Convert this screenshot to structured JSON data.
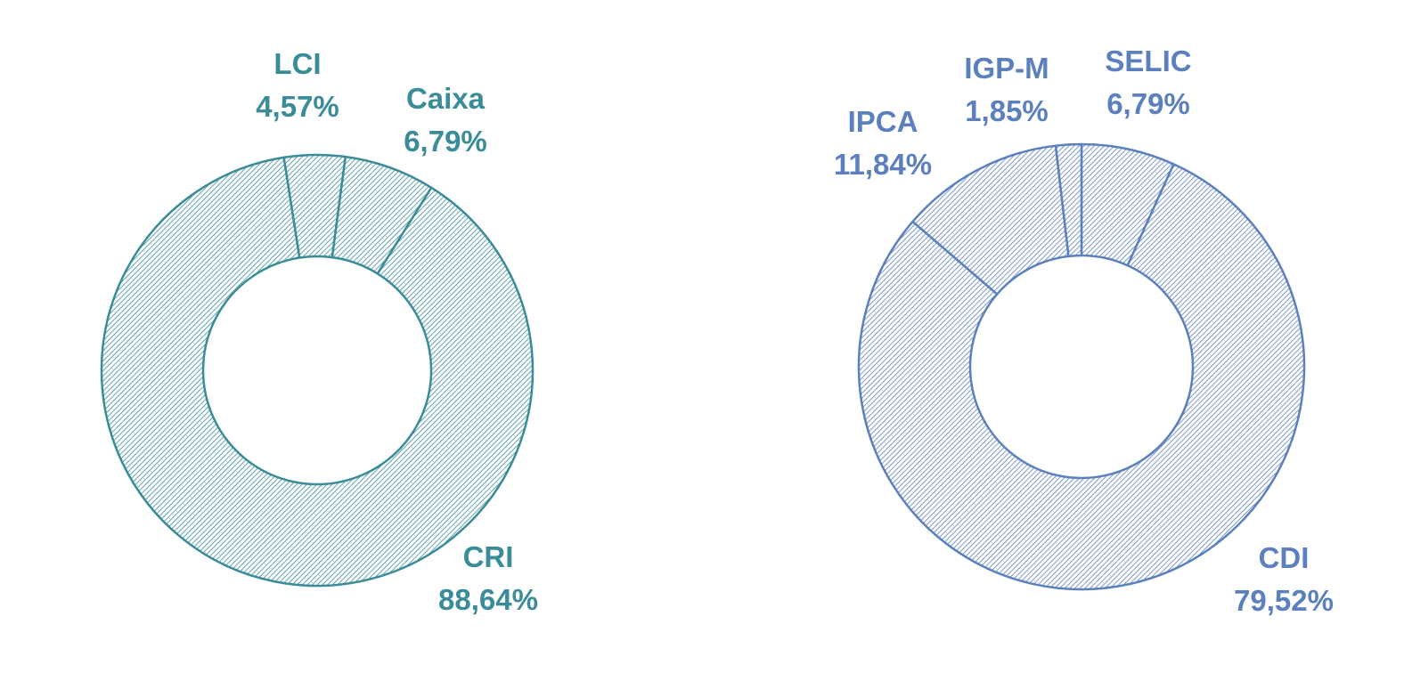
{
  "chart_data": [
    {
      "type": "pie",
      "variant": "donut",
      "pattern": "hatched",
      "color": "#3a8c98",
      "start_angle_deg": -8.9,
      "slices": [
        {
          "label": "LCI",
          "value": 4.57,
          "display": "4,57%"
        },
        {
          "label": "Caixa",
          "value": 6.79,
          "display": "6,79%"
        },
        {
          "label": "CRI",
          "value": 88.64,
          "display": "88,64%"
        }
      ]
    },
    {
      "type": "pie",
      "variant": "donut",
      "pattern": "hatched",
      "color": "#5b80bd",
      "start_angle_deg": 0,
      "slices": [
        {
          "label": "SELIC",
          "value": 6.79,
          "display": "6,79%"
        },
        {
          "label": "CDI",
          "value": 79.52,
          "display": "79,52%"
        },
        {
          "label": "IPCA",
          "value": 11.84,
          "display": "11,84%"
        },
        {
          "label": "IGP-M",
          "value": 1.85,
          "display": "1,85%"
        }
      ]
    }
  ]
}
